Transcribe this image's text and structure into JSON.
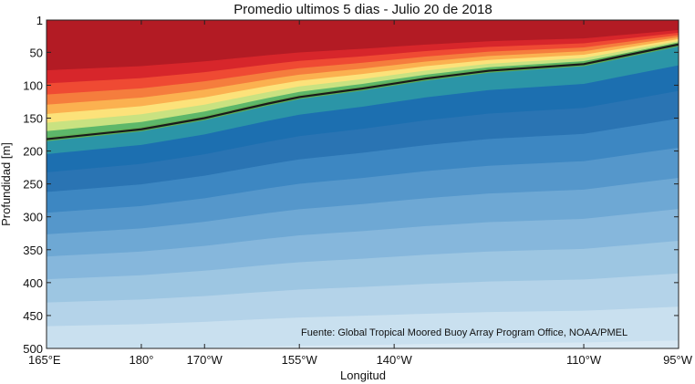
{
  "chart_data": {
    "type": "contour",
    "title": "Promedio ultimos 5 dias - Julio 20 de 2018",
    "xlabel": "Longitud",
    "ylabel": "Profundidad [m]",
    "x_ticks": [
      {
        "lon": 165,
        "label": "165°E"
      },
      {
        "lon": 180,
        "label": "180°"
      },
      {
        "lon": 190,
        "label": "170°W"
      },
      {
        "lon": 205,
        "label": "155°W"
      },
      {
        "lon": 220,
        "label": "140°W"
      },
      {
        "lon": 250,
        "label": "110°W"
      },
      {
        "lon": 265,
        "label": "95°W"
      }
    ],
    "y_ticks": [
      1,
      50,
      100,
      150,
      200,
      250,
      300,
      350,
      400,
      450,
      500
    ],
    "xlim": [
      165,
      265
    ],
    "ylim": [
      1,
      500
    ],
    "y_reversed": true,
    "source_note": "Fuente: Global Tropical Moored Buoy Array Program Office, NOAA/PMEL",
    "grid": false,
    "colormap": [
      "#b31b24",
      "#d7262b",
      "#ef4a33",
      "#f57d3d",
      "#fbb150",
      "#fce27a",
      "#c9e281",
      "#5db76a",
      "#2b95a7",
      "#1c6fb0",
      "#2a74b3",
      "#3d87c2",
      "#5597cb",
      "#6ea8d4",
      "#86b7dc",
      "#9dc6e2",
      "#b4d3e9",
      "#c9e0ef",
      "#d8e8f3"
    ],
    "thermocline_line": {
      "color": "#1a1a1a",
      "lon": [
        165,
        180,
        190,
        200,
        205,
        215,
        225,
        235,
        250,
        255,
        265
      ],
      "depth": [
        182,
        167,
        150,
        128,
        118,
        105,
        90,
        78,
        68,
        58,
        38
      ]
    }
  }
}
